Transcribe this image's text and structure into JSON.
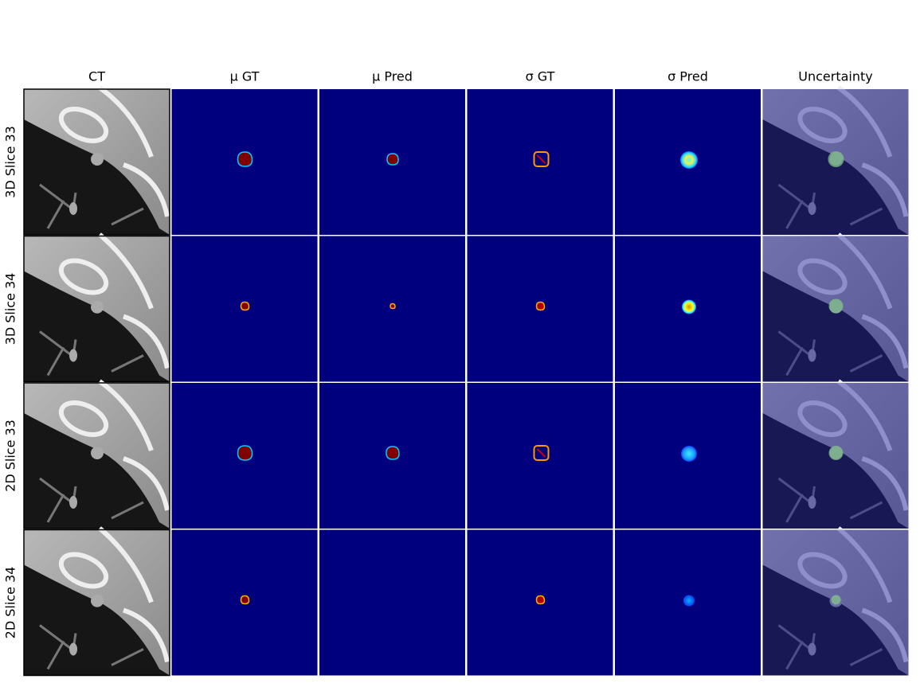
{
  "columns": [
    "CT",
    "μ GT",
    "μ Pred",
    "σ GT",
    "σ Pred",
    "Uncertainty"
  ],
  "rows": [
    "3D Slice 33",
    "3D Slice 34",
    "2D Slice 33",
    "2D Slice 34"
  ]
}
